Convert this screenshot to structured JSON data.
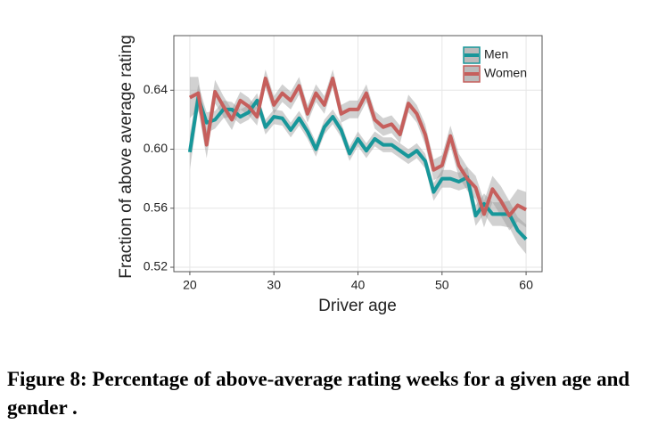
{
  "chart_data": {
    "type": "line",
    "x_label": "Driver age",
    "y_label": "Fraction of above average rating",
    "x": [
      20,
      21,
      22,
      23,
      24,
      25,
      26,
      27,
      28,
      29,
      30,
      31,
      32,
      33,
      34,
      35,
      36,
      37,
      38,
      39,
      40,
      41,
      42,
      43,
      44,
      45,
      46,
      47,
      48,
      49,
      50,
      51,
      52,
      53,
      54,
      55,
      56,
      57,
      58,
      59,
      60
    ],
    "series": [
      {
        "name": "Men",
        "color": "#17979a",
        "values": [
          0.598,
          0.635,
          0.618,
          0.62,
          0.627,
          0.627,
          0.622,
          0.625,
          0.633,
          0.615,
          0.622,
          0.621,
          0.613,
          0.621,
          0.612,
          0.6,
          0.615,
          0.622,
          0.613,
          0.597,
          0.607,
          0.599,
          0.607,
          0.603,
          0.603,
          0.599,
          0.595,
          0.599,
          0.592,
          0.571,
          0.58,
          0.58,
          0.578,
          0.581,
          0.555,
          0.563,
          0.556,
          0.556,
          0.556,
          0.545,
          0.539
        ],
        "errors": [
          0.012,
          0.009,
          0.007,
          0.006,
          0.006,
          0.005,
          0.005,
          0.005,
          0.005,
          0.005,
          0.005,
          0.005,
          0.005,
          0.005,
          0.005,
          0.005,
          0.005,
          0.005,
          0.005,
          0.005,
          0.005,
          0.005,
          0.005,
          0.005,
          0.005,
          0.005,
          0.005,
          0.005,
          0.005,
          0.006,
          0.006,
          0.006,
          0.006,
          0.007,
          0.007,
          0.007,
          0.008,
          0.008,
          0.009,
          0.009,
          0.01
        ]
      },
      {
        "name": "Women",
        "color": "#c65f5c",
        "values": [
          0.635,
          0.638,
          0.603,
          0.639,
          0.629,
          0.62,
          0.633,
          0.629,
          0.622,
          0.648,
          0.63,
          0.638,
          0.633,
          0.643,
          0.624,
          0.638,
          0.63,
          0.648,
          0.624,
          0.627,
          0.627,
          0.638,
          0.62,
          0.615,
          0.617,
          0.61,
          0.631,
          0.624,
          0.61,
          0.586,
          0.589,
          0.609,
          0.589,
          0.58,
          0.574,
          0.556,
          0.573,
          0.565,
          0.555,
          0.562,
          0.559
        ],
        "errors": [
          0.014,
          0.011,
          0.009,
          0.008,
          0.007,
          0.007,
          0.006,
          0.006,
          0.006,
          0.006,
          0.006,
          0.006,
          0.006,
          0.006,
          0.006,
          0.006,
          0.006,
          0.006,
          0.006,
          0.006,
          0.006,
          0.006,
          0.006,
          0.006,
          0.006,
          0.006,
          0.006,
          0.006,
          0.007,
          0.007,
          0.007,
          0.007,
          0.008,
          0.008,
          0.008,
          0.009,
          0.009,
          0.01,
          0.01,
          0.011,
          0.012
        ]
      }
    ],
    "xlim": [
      18.1,
      61.9
    ],
    "xticks": [
      20,
      30,
      40,
      50,
      60
    ],
    "ylim": [
      0.517,
      0.677
    ],
    "yticks": [
      0.52,
      0.56,
      {
        "value": 0.6,
        "label": "0.60"
      },
      0.64
    ],
    "grid": true,
    "legend": "top-right",
    "caption": "Figure 8: Percentage of above-average rating weeks for a given age and gender ."
  }
}
